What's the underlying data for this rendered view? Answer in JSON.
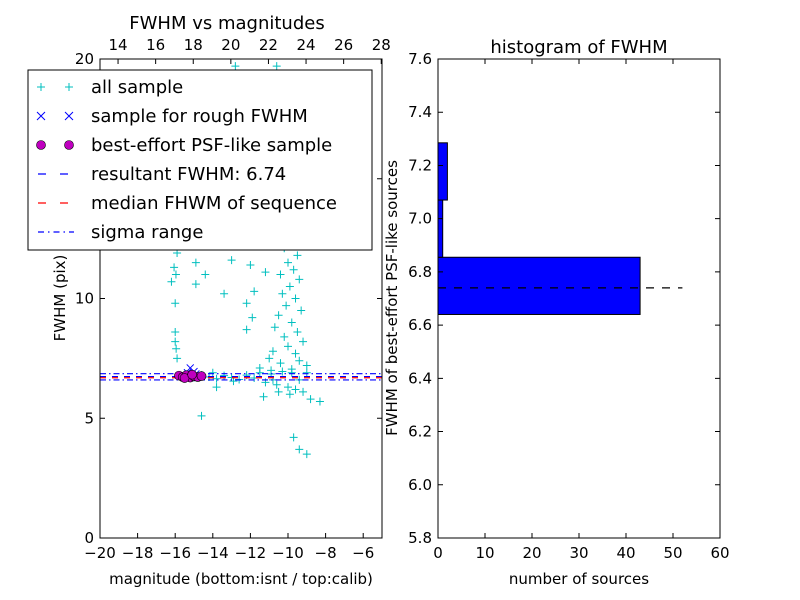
{
  "chart_data": [
    {
      "type": "scatter",
      "title": "FWHM vs magnitudes",
      "xlabel": "magnitude (bottom:isnt / top:calib)",
      "ylabel": "FWHM (pix)",
      "xlim": [
        -20,
        -5
      ],
      "ylim": [
        0,
        20
      ],
      "top_xlim": [
        13.04,
        28.04
      ],
      "xticks": [
        "−20",
        "−18",
        "−16",
        "−14",
        "−12",
        "−10",
        "−8",
        "−6"
      ],
      "xtick_values": [
        -20,
        -18,
        -16,
        -14,
        -12,
        -10,
        -8,
        -6
      ],
      "top_xticks": [
        "14",
        "16",
        "18",
        "20",
        "22",
        "24",
        "26",
        "28"
      ],
      "top_xtick_values": [
        14,
        16,
        18,
        20,
        22,
        24,
        26,
        28
      ],
      "yticks": [
        "0",
        "5",
        "10",
        "15",
        "20"
      ],
      "ytick_values": [
        0,
        5,
        10,
        15,
        20
      ],
      "legend_position": "upper-left",
      "legend": [
        {
          "label": "all sample",
          "marker": "plus",
          "color": "#00bfbf"
        },
        {
          "label": "sample for rough FWHM",
          "marker": "x",
          "color": "#0000ff"
        },
        {
          "label": "best-effort PSF-like sample",
          "marker": "circle",
          "color": "#bf00bf"
        },
        {
          "label": "resultant FWHM: 6.74",
          "marker": "dashed",
          "color": "#0000ff"
        },
        {
          "label": "median FHWM of sequence",
          "marker": "dashed",
          "color": "#ff0000"
        },
        {
          "label": "sigma range",
          "marker": "dashdot",
          "color": "#0000ff"
        }
      ],
      "resultant_fwhm": 6.74,
      "median_fwhm": 6.69,
      "sigma_range": [
        6.6,
        6.86
      ],
      "all_sample": [
        [
          -15.9,
          11.9
        ],
        [
          -16.06,
          11.3
        ],
        [
          -15.96,
          11.0
        ],
        [
          -16.2,
          10.7
        ],
        [
          -14.9,
          11.5
        ],
        [
          -14.4,
          11.0
        ],
        [
          -14.9,
          10.6
        ],
        [
          -13.0,
          11.6
        ],
        [
          -12.0,
          11.4
        ],
        [
          -13.4,
          10.2
        ],
        [
          -16.0,
          9.8
        ],
        [
          -11.8,
          10.3
        ],
        [
          -12.2,
          9.8
        ],
        [
          -11.9,
          9.2
        ],
        [
          -12.2,
          8.7
        ],
        [
          -16.0,
          8.6
        ],
        [
          -16.0,
          8.2
        ],
        [
          -15.95,
          7.9
        ],
        [
          -15.9,
          7.5
        ],
        [
          -11.2,
          11.1
        ],
        [
          -13.8,
          6.3
        ],
        [
          -14.6,
          5.1
        ],
        [
          -11.3,
          5.9
        ],
        [
          -9.7,
          4.2
        ],
        [
          -9.4,
          3.7
        ],
        [
          -9.0,
          3.5
        ],
        [
          -8.3,
          5.7
        ],
        [
          -8.8,
          5.8
        ],
        [
          -12.8,
          19.7
        ],
        [
          -10.6,
          19.7
        ],
        [
          -9.8,
          13.8
        ],
        [
          -9.6,
          12.9
        ],
        [
          -9.9,
          12.4
        ],
        [
          -10.2,
          12.1
        ],
        [
          -9.5,
          11.8
        ],
        [
          -10.0,
          11.5
        ],
        [
          -9.7,
          11.2
        ],
        [
          -10.4,
          11.0
        ],
        [
          -9.4,
          10.8
        ],
        [
          -9.9,
          10.5
        ],
        [
          -10.3,
          10.2
        ],
        [
          -9.6,
          10.0
        ],
        [
          -10.1,
          9.7
        ],
        [
          -9.3,
          9.5
        ],
        [
          -10.5,
          9.3
        ],
        [
          -9.8,
          9.0
        ],
        [
          -10.7,
          8.8
        ],
        [
          -9.5,
          8.6
        ],
        [
          -10.2,
          8.4
        ],
        [
          -9.2,
          8.2
        ],
        [
          -10.0,
          8.0
        ],
        [
          -10.8,
          7.8
        ],
        [
          -9.6,
          7.7
        ],
        [
          -11.0,
          7.5
        ],
        [
          -9.4,
          7.4
        ],
        [
          -10.4,
          7.3
        ],
        [
          -9.0,
          7.2
        ],
        [
          -11.5,
          7.1
        ],
        [
          -10.9,
          7.0
        ],
        [
          -9.8,
          6.9
        ],
        [
          -15.4,
          6.75
        ],
        [
          -15.0,
          6.7
        ],
        [
          -14.6,
          6.8
        ],
        [
          -14.2,
          6.72
        ],
        [
          -13.8,
          6.65
        ],
        [
          -13.4,
          6.78
        ],
        [
          -13.0,
          6.7
        ],
        [
          -12.6,
          6.62
        ],
        [
          -12.2,
          6.8
        ],
        [
          -11.8,
          6.68
        ],
        [
          -11.5,
          6.9
        ],
        [
          -11.2,
          6.5
        ],
        [
          -10.9,
          6.85
        ],
        [
          -10.6,
          6.4
        ],
        [
          -10.3,
          6.95
        ],
        [
          -10.0,
          6.3
        ],
        [
          -9.8,
          7.05
        ],
        [
          -9.6,
          6.2
        ],
        [
          -9.4,
          6.6
        ],
        [
          -9.2,
          6.1
        ],
        [
          -9.0,
          6.9
        ],
        [
          -10.5,
          6.1
        ],
        [
          -9.9,
          6.0
        ],
        [
          -10.8,
          6.6
        ],
        [
          -12.9,
          6.55
        ],
        [
          -14.0,
          6.9
        ]
      ],
      "rough_sample": [
        [
          -15.2,
          7.1
        ],
        [
          -15.0,
          6.95
        ],
        [
          -15.35,
          6.9
        ],
        [
          -14.9,
          6.85
        ]
      ],
      "best_effort_sample": [
        [
          -15.8,
          6.78
        ],
        [
          -15.6,
          6.72
        ],
        [
          -15.4,
          6.8
        ],
        [
          -15.2,
          6.7
        ],
        [
          -15.0,
          6.75
        ],
        [
          -14.8,
          6.72
        ],
        [
          -14.6,
          6.76
        ],
        [
          -15.5,
          6.68
        ],
        [
          -15.1,
          6.82
        ]
      ]
    },
    {
      "type": "bar",
      "orientation": "horizontal",
      "title": "histogram of FWHM",
      "xlabel": "number of sources",
      "ylabel": "FWHM of best-effort PSF-like sources",
      "xlim": [
        0,
        60
      ],
      "ylim": [
        5.8,
        7.6
      ],
      "xticks": [
        "0",
        "10",
        "20",
        "30",
        "40",
        "50",
        "60"
      ],
      "xtick_values": [
        0,
        10,
        20,
        30,
        40,
        50,
        60
      ],
      "yticks": [
        "5.8",
        "6.0",
        "6.2",
        "6.4",
        "6.6",
        "6.8",
        "7.0",
        "7.2",
        "7.4",
        "7.6"
      ],
      "ytick_values": [
        5.8,
        6.0,
        6.2,
        6.4,
        6.6,
        6.8,
        7.0,
        7.2,
        7.4,
        7.6
      ],
      "bins": [
        [
          6.64,
          6.855
        ],
        [
          6.855,
          7.07
        ],
        [
          7.07,
          7.285
        ]
      ],
      "values": [
        43,
        1,
        2
      ],
      "bar_color": "#0000ff",
      "reference_line": {
        "value": 6.74,
        "extent": 52
      }
    }
  ]
}
